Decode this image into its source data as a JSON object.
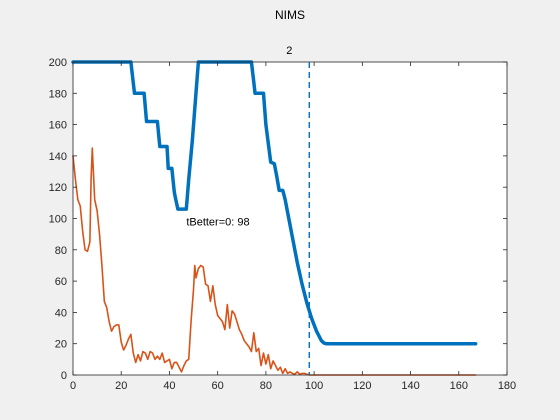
{
  "figure_title": "NIMS",
  "chart_data": {
    "type": "line",
    "title": "NIMS",
    "xlim": [
      0,
      180
    ],
    "ylim": [
      0,
      200
    ],
    "xticks": [
      0,
      20,
      40,
      60,
      80,
      100,
      120,
      140,
      160,
      180
    ],
    "yticks": [
      0,
      20,
      40,
      60,
      80,
      100,
      120,
      140,
      160,
      180,
      200
    ],
    "grid": false,
    "series": [
      {
        "color": "#0072BD",
        "linewidth": "thick",
        "points": [
          [
            0,
            200
          ],
          [
            24,
            200
          ],
          [
            25.5,
            180
          ],
          [
            29.5,
            180
          ],
          [
            30.5,
            162
          ],
          [
            35,
            162
          ],
          [
            36,
            146
          ],
          [
            39,
            146
          ],
          [
            39.5,
            132
          ],
          [
            41,
            132
          ],
          [
            42,
            117
          ],
          [
            42.5,
            113
          ],
          [
            43.5,
            106
          ],
          [
            47,
            106
          ],
          [
            48,
            125
          ],
          [
            49.5,
            150
          ],
          [
            51,
            180
          ],
          [
            52,
            200
          ],
          [
            74,
            200
          ],
          [
            75,
            187
          ],
          [
            75.5,
            180
          ],
          [
            79,
            180
          ],
          [
            80,
            160
          ],
          [
            81,
            148
          ],
          [
            82,
            136
          ],
          [
            83.5,
            135
          ],
          [
            84.5,
            127
          ],
          [
            85.5,
            118
          ],
          [
            87,
            118
          ],
          [
            88,
            112
          ],
          [
            89,
            104
          ],
          [
            90,
            96
          ],
          [
            91,
            88
          ],
          [
            92,
            80
          ],
          [
            93,
            72
          ],
          [
            94,
            65
          ],
          [
            95,
            58
          ],
          [
            96,
            52
          ],
          [
            97,
            46
          ],
          [
            98,
            41
          ],
          [
            99,
            36
          ],
          [
            100,
            32
          ],
          [
            101,
            28
          ],
          [
            102,
            25
          ],
          [
            103,
            22
          ],
          [
            104,
            20.5
          ],
          [
            105,
            20
          ],
          [
            110,
            20
          ],
          [
            130,
            20
          ],
          [
            150,
            20
          ],
          [
            167,
            20
          ]
        ]
      },
      {
        "color": "#D95319",
        "linewidth": "normal",
        "points": [
          [
            0,
            140
          ],
          [
            1,
            125
          ],
          [
            2,
            112
          ],
          [
            3,
            108
          ],
          [
            4,
            92
          ],
          [
            5,
            80
          ],
          [
            6,
            79
          ],
          [
            7,
            85
          ],
          [
            7.5,
            125
          ],
          [
            8,
            145
          ],
          [
            9,
            112
          ],
          [
            10,
            105
          ],
          [
            11,
            90
          ],
          [
            12,
            70
          ],
          [
            13,
            47
          ],
          [
            14,
            43
          ],
          [
            15,
            34
          ],
          [
            16,
            28
          ],
          [
            17,
            31
          ],
          [
            18,
            32
          ],
          [
            19,
            32
          ],
          [
            20,
            21
          ],
          [
            21,
            16
          ],
          [
            22,
            19
          ],
          [
            23,
            23
          ],
          [
            24,
            26
          ],
          [
            25,
            14
          ],
          [
            26,
            8
          ],
          [
            27,
            13
          ],
          [
            28,
            9
          ],
          [
            29,
            15
          ],
          [
            30,
            14
          ],
          [
            31,
            10
          ],
          [
            32,
            15
          ],
          [
            33,
            14
          ],
          [
            34,
            10
          ],
          [
            35,
            12
          ],
          [
            36,
            10
          ],
          [
            37,
            14
          ],
          [
            38,
            8
          ],
          [
            39,
            9
          ],
          [
            40,
            10
          ],
          [
            41,
            4
          ],
          [
            42,
            8
          ],
          [
            43,
            8
          ],
          [
            44,
            5
          ],
          [
            45,
            2
          ],
          [
            46,
            6
          ],
          [
            47,
            9
          ],
          [
            48,
            10
          ],
          [
            49,
            35
          ],
          [
            50,
            55
          ],
          [
            50.5,
            70
          ],
          [
            51,
            62
          ],
          [
            52,
            68
          ],
          [
            53,
            70
          ],
          [
            54,
            69
          ],
          [
            55,
            58
          ],
          [
            56,
            57
          ],
          [
            57,
            47
          ],
          [
            58,
            57
          ],
          [
            59,
            45
          ],
          [
            60,
            38
          ],
          [
            61,
            36
          ],
          [
            62,
            34
          ],
          [
            63,
            29
          ],
          [
            64,
            45
          ],
          [
            65,
            30
          ],
          [
            66,
            41
          ],
          [
            67,
            39
          ],
          [
            68,
            34
          ],
          [
            69,
            29
          ],
          [
            70,
            26
          ],
          [
            71,
            22
          ],
          [
            72,
            20
          ],
          [
            73,
            18
          ],
          [
            74,
            15
          ],
          [
            75,
            27
          ],
          [
            76,
            15
          ],
          [
            77,
            17
          ],
          [
            78,
            6
          ],
          [
            79,
            14
          ],
          [
            80,
            7
          ],
          [
            81,
            13
          ],
          [
            82,
            4
          ],
          [
            83,
            9
          ],
          [
            84,
            6
          ],
          [
            85,
            3
          ],
          [
            86,
            5
          ],
          [
            87,
            1
          ],
          [
            88,
            4
          ],
          [
            89,
            1
          ],
          [
            90,
            2
          ],
          [
            91,
            1
          ],
          [
            92,
            0.5
          ],
          [
            93,
            2
          ],
          [
            94,
            0.5
          ],
          [
            95,
            1
          ],
          [
            96,
            1
          ],
          [
            97,
            0.5
          ],
          [
            98,
            0
          ],
          [
            100,
            0
          ],
          [
            110,
            0
          ],
          [
            130,
            0
          ],
          [
            150,
            0
          ],
          [
            167,
            0
          ]
        ]
      }
    ],
    "vline": {
      "x": 98,
      "label": "2",
      "style": "dashed",
      "color": "#0072BD"
    },
    "annotation": {
      "text": "tBetter=0: 98",
      "x": 47,
      "y": 98
    }
  }
}
